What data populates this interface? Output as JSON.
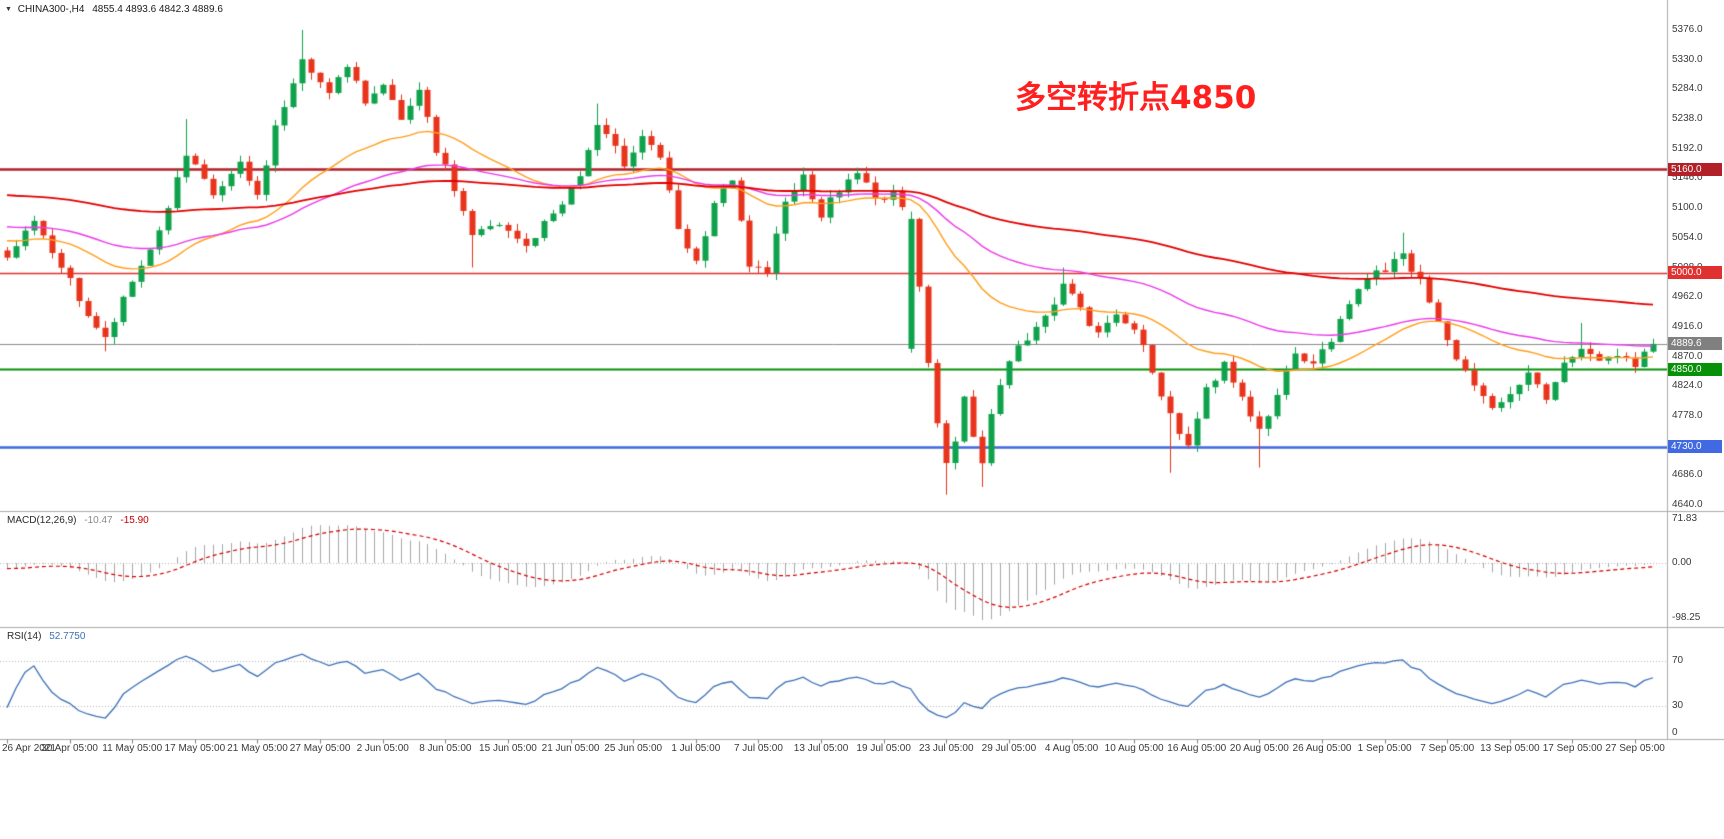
{
  "header": {
    "triangle": "▼",
    "symbol": "CHINA300-,H4",
    "ohlc": "4855.4 4893.6 4842.3 4889.6"
  },
  "annotation": {
    "text": "多空转折点4850",
    "color": "#FF1F1F"
  },
  "indicators": {
    "macd": {
      "label": "MACD(12,26,9)",
      "value_main": "-10.47",
      "value_signal": "-15.90",
      "scale_labels": [
        "71.83",
        "0.00",
        "-98.25"
      ]
    },
    "rsi": {
      "label": "RSI(14)",
      "value": "52.7750",
      "scale_labels": [
        "70",
        "30",
        "0"
      ]
    }
  },
  "price_axis": {
    "labels": [
      "5376.0",
      "5330.0",
      "5284.0",
      "5238.0",
      "5192.0",
      "5146.0",
      "5100.0",
      "5054.0",
      "5008.0",
      "4962.0",
      "4916.0",
      "4870.0",
      "4824.0",
      "4778.0",
      "4732.0",
      "4686.0",
      "4640.0"
    ]
  },
  "price_tags": [
    {
      "text": "5160.0",
      "value": 5160.0,
      "color": "#B22028"
    },
    {
      "text": "5000.0",
      "value": 5000.0,
      "color": "#E03030"
    },
    {
      "text": "4889.6",
      "value": 4889.6,
      "color": "#808080"
    },
    {
      "text": "4850.0",
      "value": 4850.0,
      "color": "#089008"
    },
    {
      "text": "4730.0",
      "value": 4730.0,
      "color": "#4169E1"
    }
  ],
  "time_axis": {
    "labels": [
      "26 Apr 2021",
      "30 Apr 05:00",
      "11 May 05:00",
      "17 May 05:00",
      "21 May 05:00",
      "27 May 05:00",
      "2 Jun 05:00",
      "8 Jun 05:00",
      "15 Jun 05:00",
      "21 Jun 05:00",
      "25 Jun 05:00",
      "1 Jul 05:00",
      "7 Jul 05:00",
      "13 Jul 05:00",
      "19 Jul 05:00",
      "23 Jul 05:00",
      "29 Jul 05:00",
      "4 Aug 05:00",
      "10 Aug 05:00",
      "16 Aug 05:00",
      "20 Aug 05:00",
      "26 Aug 05:00",
      "1 Sep 05:00",
      "7 Sep 05:00",
      "13 Sep 05:00",
      "17 Sep 05:00",
      "27 Sep 05:00"
    ]
  },
  "chart_data": {
    "type": "candlestick",
    "symbol": "CHINA300-",
    "timeframe": "H4",
    "ohlc_current": {
      "open": 4855.4,
      "high": 4893.6,
      "low": 4842.3,
      "close": 4889.6
    },
    "y_range": {
      "top": 5376.0,
      "bottom": 4640.0
    },
    "candles_count": 185,
    "close_keyframes": [
      [
        0,
        5030
      ],
      [
        3,
        5075
      ],
      [
        6,
        5010
      ],
      [
        9,
        4935
      ],
      [
        11,
        4895
      ],
      [
        14,
        4985
      ],
      [
        17,
        5065
      ],
      [
        20,
        5180
      ],
      [
        23,
        5120
      ],
      [
        26,
        5165
      ],
      [
        28,
        5118
      ],
      [
        30,
        5225
      ],
      [
        33,
        5325
      ],
      [
        36,
        5285
      ],
      [
        38,
        5315
      ],
      [
        40,
        5265
      ],
      [
        42,
        5298
      ],
      [
        44,
        5230
      ],
      [
        46,
        5278
      ],
      [
        48,
        5190
      ],
      [
        50,
        5130
      ],
      [
        52,
        5060
      ],
      [
        55,
        5072
      ],
      [
        58,
        5040
      ],
      [
        61,
        5092
      ],
      [
        64,
        5150
      ],
      [
        66,
        5228
      ],
      [
        69,
        5170
      ],
      [
        71,
        5215
      ],
      [
        73,
        5180
      ],
      [
        75,
        5062
      ],
      [
        77,
        5012
      ],
      [
        79,
        5108
      ],
      [
        81,
        5140
      ],
      [
        83,
        5012
      ],
      [
        85,
        4992
      ],
      [
        87,
        5118
      ],
      [
        89,
        5148
      ],
      [
        91,
        5092
      ],
      [
        93,
        5128
      ],
      [
        95,
        5158
      ],
      [
        97,
        5112
      ],
      [
        99,
        5128
      ],
      [
        100,
        5094
      ],
      [
        101,
        5090
      ],
      [
        102,
        4985
      ],
      [
        103,
        4862
      ],
      [
        104,
        4762
      ],
      [
        105,
        4702
      ],
      [
        106,
        4742
      ],
      [
        107,
        4808
      ],
      [
        108,
        4752
      ],
      [
        109,
        4705
      ],
      [
        110,
        4782
      ],
      [
        112,
        4868
      ],
      [
        114,
        4898
      ],
      [
        116,
        4928
      ],
      [
        118,
        4988
      ],
      [
        120,
        4940
      ],
      [
        122,
        4902
      ],
      [
        124,
        4938
      ],
      [
        126,
        4918
      ],
      [
        128,
        4842
      ],
      [
        130,
        4782
      ],
      [
        132,
        4732
      ],
      [
        134,
        4818
      ],
      [
        136,
        4858
      ],
      [
        138,
        4812
      ],
      [
        140,
        4752
      ],
      [
        142,
        4818
      ],
      [
        144,
        4868
      ],
      [
        146,
        4858
      ],
      [
        148,
        4898
      ],
      [
        150,
        4958
      ],
      [
        152,
        4988
      ],
      [
        154,
        5008
      ],
      [
        156,
        5032
      ],
      [
        158,
        4985
      ],
      [
        160,
        4930
      ],
      [
        162,
        4868
      ],
      [
        164,
        4820
      ],
      [
        166,
        4786
      ],
      [
        168,
        4806
      ],
      [
        170,
        4842
      ],
      [
        172,
        4806
      ],
      [
        174,
        4858
      ],
      [
        176,
        4886
      ],
      [
        178,
        4862
      ],
      [
        180,
        4872
      ],
      [
        182,
        4858
      ],
      [
        184,
        4889.6
      ]
    ],
    "wick_overrides": [
      [
        11,
        "l",
        4878
      ],
      [
        20,
        "h",
        5238
      ],
      [
        33,
        "h",
        5376
      ],
      [
        52,
        "l",
        5008
      ],
      [
        66,
        "h",
        5262
      ],
      [
        101,
        "l",
        4876
      ],
      [
        105,
        "l",
        4656
      ],
      [
        109,
        "l",
        4668
      ],
      [
        118,
        "h",
        5008
      ],
      [
        130,
        "l",
        4690
      ],
      [
        140,
        "l",
        4698
      ],
      [
        156,
        "h",
        5062
      ],
      [
        176,
        "h",
        4922
      ]
    ],
    "open_overrides": [
      [
        101,
        4882
      ]
    ],
    "pre_trend": {
      "bars": 160,
      "from": 5260,
      "to": 5030
    },
    "noise": {
      "seed": 7,
      "close_amp": 16,
      "wick_amp": 12
    },
    "colors": {
      "up": "#0FA24C",
      "down": "#E8341C"
    },
    "moving_averages": [
      {
        "name": "fast",
        "period": 30,
        "color": "#FF9E1B"
      },
      {
        "name": "medium",
        "period": 60,
        "color": "#EA3BEA"
      },
      {
        "name": "slow",
        "period": 144,
        "color": "#E10000"
      }
    ],
    "levels": [
      {
        "value": 5160.0,
        "color": "#B22028",
        "width": 2.4
      },
      {
        "value": 5000.0,
        "color": "#E03030",
        "width": 1.4
      },
      {
        "value": 4850.0,
        "color": "#089008",
        "width": 2
      },
      {
        "value": 4730.0,
        "color": "#4169E1",
        "width": 2.4
      }
    ],
    "current_price_line": {
      "value": 4889.6,
      "color": "#8C8C8C"
    },
    "macd": {
      "fast": 12,
      "slow": 26,
      "signal": 9,
      "histogram_color": "#A8A8A8",
      "signal_color": "#D40000",
      "range": [
        71.83,
        -98.25
      ],
      "current": [
        -10.47,
        -15.9
      ]
    },
    "rsi": {
      "period": 14,
      "color": "#3E71B8",
      "levels": [
        70,
        30
      ],
      "current": 52.775
    }
  }
}
